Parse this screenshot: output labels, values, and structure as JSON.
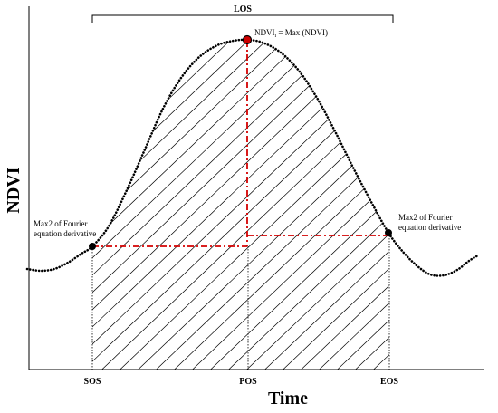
{
  "labels": {
    "los": "LOS",
    "y_axis": "NDVI",
    "x_axis": "Time",
    "peak_prefix": "NDVI",
    "peak_subscript": "i",
    "peak_suffix": " = Max (NDVI)",
    "left_note_line1": "Max2 of Fourier",
    "left_note_line2": "equation derivative",
    "right_note_line1": "Max2 of Fourier",
    "right_note_line2": "equation derivative"
  },
  "ticks": {
    "sos": "SOS",
    "pos": "POS",
    "eos": "EOS"
  },
  "colors": {
    "curve": "#000000",
    "dash_lines": "#d40000",
    "markers": "#000000",
    "peak_marker": "#cc0000",
    "hatch": "#000000"
  }
}
